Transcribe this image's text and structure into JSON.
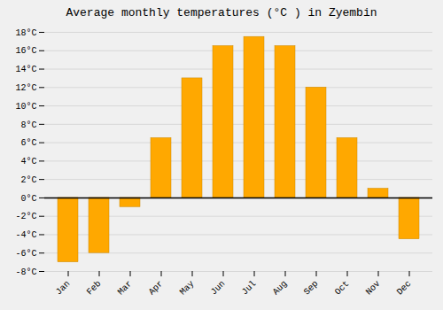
{
  "chart_data": {
    "type": "bar",
    "title": "Average monthly temperatures (°C ) in Zyembin",
    "categories": [
      "Jan",
      "Feb",
      "Mar",
      "Apr",
      "May",
      "Jun",
      "Jul",
      "Aug",
      "Sep",
      "Oct",
      "Nov",
      "Dec"
    ],
    "values": [
      -7.0,
      -6.0,
      -1.0,
      6.5,
      13.0,
      16.5,
      17.5,
      16.5,
      12.0,
      6.5,
      1.0,
      -4.5
    ],
    "color": "#FFA800",
    "ylim": [
      -8,
      18
    ],
    "yticks": [
      {
        "value": -8,
        "label": "-8°C"
      },
      {
        "value": -6,
        "label": "-6°C"
      },
      {
        "value": -4,
        "label": "-4°C"
      },
      {
        "value": -2,
        "label": "-2°C"
      },
      {
        "value": 0,
        "label": "0°C"
      },
      {
        "value": 2,
        "label": "2°C"
      },
      {
        "value": 4,
        "label": "4°C"
      },
      {
        "value": 6,
        "label": "6°C"
      },
      {
        "value": 8,
        "label": "8°C"
      },
      {
        "value": 10,
        "label": "10°C"
      },
      {
        "value": 12,
        "label": "12°C"
      },
      {
        "value": 14,
        "label": "14°C"
      },
      {
        "value": 16,
        "label": "16°C"
      },
      {
        "value": 18,
        "label": "18°C"
      }
    ],
    "grid": true
  }
}
